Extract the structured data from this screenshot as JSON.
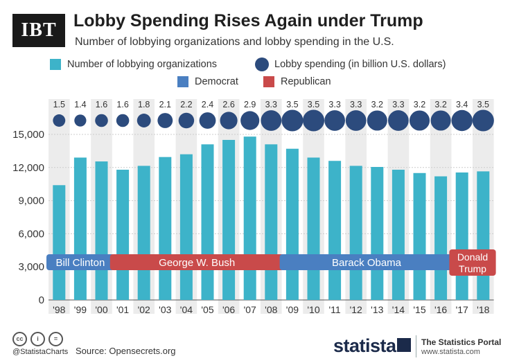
{
  "header": {
    "logo": "IBT",
    "title": "Lobby Spending Rises Again under Trump",
    "subtitle": "Number of lobbying organizations and lobby spending in the U.S."
  },
  "legend": {
    "orgs": "Number of lobbying organizations",
    "spending": "Lobby spending (in billion U.S. dollars)",
    "democrat": "Democrat",
    "republican": "Republican"
  },
  "colors": {
    "bar": "#3db3c9",
    "dot": "#2c4b7d",
    "democrat": "#4a7fc1",
    "republican": "#c94a4a",
    "band": "#ececec"
  },
  "chart_data": {
    "type": "bar",
    "title": "Lobby Spending Rises Again under Trump",
    "categories": [
      "'98",
      "'99",
      "'00",
      "'01",
      "'02",
      "'03",
      "'04",
      "'05",
      "'06",
      "'07",
      "'08",
      "'09",
      "'10",
      "'11",
      "'12",
      "'13",
      "'14",
      "'15",
      "'16",
      "'17",
      "'18"
    ],
    "series": [
      {
        "name": "Number of lobbying organizations",
        "values": [
          10400,
          12900,
          12550,
          11800,
          12150,
          12950,
          13200,
          14100,
          14500,
          14800,
          14100,
          13700,
          12900,
          12600,
          12150,
          12050,
          11800,
          11500,
          11200,
          11550,
          11650
        ]
      },
      {
        "name": "Lobby spending (in billion U.S. dollars)",
        "values": [
          "1.5",
          "1.4",
          "1.6",
          "1.6",
          "1.8",
          "2.1",
          "2.2",
          "2.4",
          "2.6",
          "2.9",
          "3.3",
          "3.5",
          "3.5",
          "3.3",
          "3.3",
          "3.2",
          "3.3",
          "3.2",
          "3.2",
          "3.4",
          "3.5"
        ]
      }
    ],
    "yticks": [
      "0",
      "3,000",
      "6,000",
      "9,000",
      "12,000",
      "15,000"
    ],
    "ylim": [
      0,
      15000
    ],
    "presidents": [
      {
        "name": "Bill Clinton",
        "party": "democrat",
        "start": 0,
        "end": 2
      },
      {
        "name": "George W. Bush",
        "party": "republican",
        "start": 3,
        "end": 10
      },
      {
        "name": "Barack Obama",
        "party": "democrat",
        "start": 11,
        "end": 18
      },
      {
        "name": "Donald Trump",
        "party": "republican",
        "start": 19,
        "end": 20
      }
    ]
  },
  "footer": {
    "handle": "@StatistaCharts",
    "source": "Source: Opensecrets.org",
    "brand": "statista",
    "portal_title": "The Statistics Portal",
    "portal_url": "www.statista.com"
  }
}
